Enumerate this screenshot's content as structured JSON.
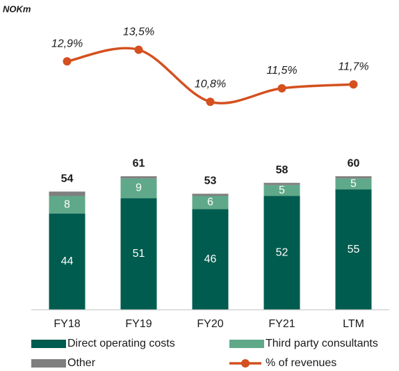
{
  "chart_data": {
    "type": "bar",
    "unit_label": "NOKm",
    "categories": [
      "FY18",
      "FY19",
      "FY20",
      "FY21",
      "LTM"
    ],
    "series": [
      {
        "name": "Direct operating costs",
        "color": "#005c4f",
        "values": [
          44,
          51,
          46,
          52,
          55
        ]
      },
      {
        "name": "Third party consultants",
        "color": "#5fa98a",
        "values": [
          8,
          9,
          6,
          5,
          5
        ]
      },
      {
        "name": "Other",
        "color": "#7f7f7f",
        "values": [
          2,
          1,
          1,
          1,
          1
        ]
      },
      {
        "name": "% of revenues",
        "color": "#d4501f",
        "axis": "y2",
        "values": [
          12.9,
          13.5,
          10.8,
          11.5,
          11.7
        ],
        "value_labels": [
          "12,9%",
          "13,5%",
          "10,8%",
          "11,5%",
          "11,7%"
        ]
      }
    ],
    "totals": [
      54,
      61,
      53,
      58,
      60
    ],
    "ylim": [
      0,
      132
    ],
    "y2lim": [
      0,
      15
    ]
  }
}
